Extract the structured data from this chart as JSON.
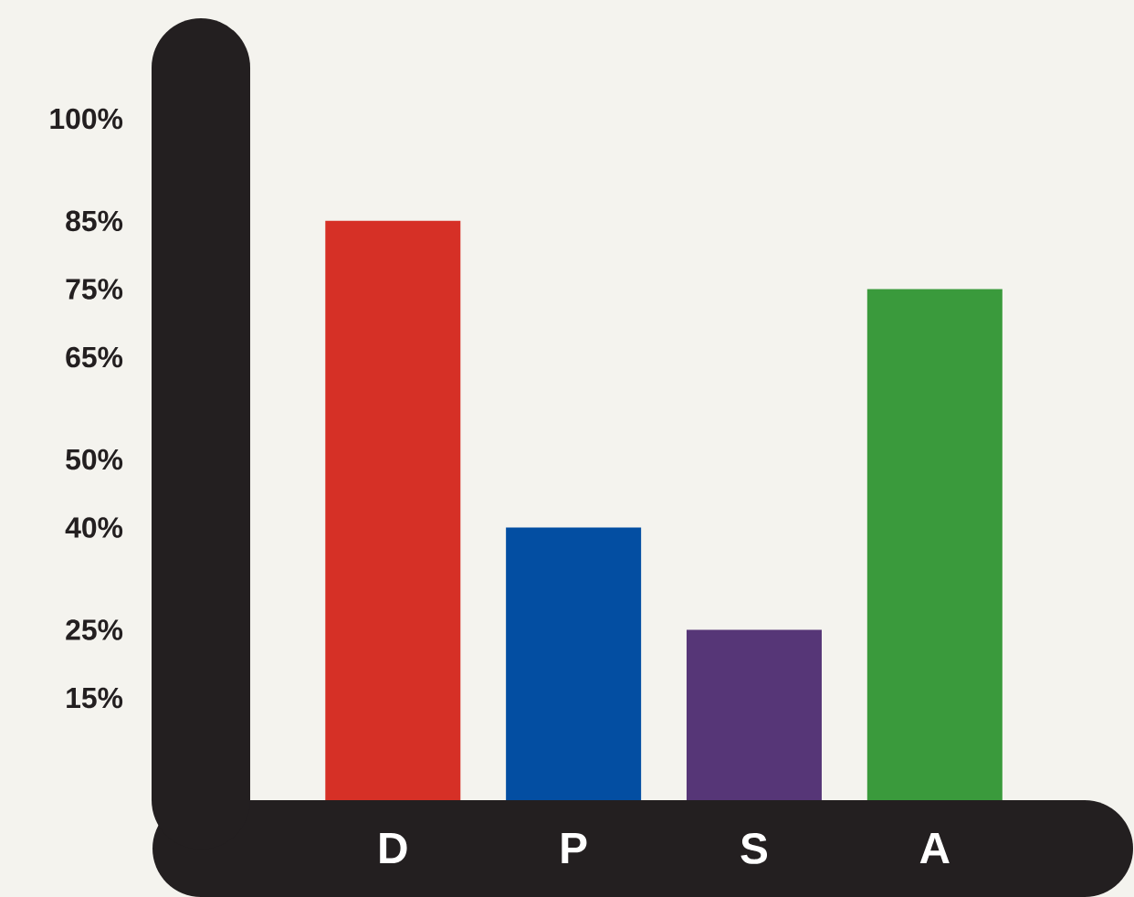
{
  "chart_data": {
    "type": "bar",
    "categories": [
      "D",
      "P",
      "S",
      "A"
    ],
    "values": [
      85,
      40,
      25,
      75
    ],
    "colors": [
      "#d63026",
      "#034ea2",
      "#563677",
      "#3a9a3c"
    ],
    "ylim": [
      0,
      100
    ],
    "yticks": [
      {
        "value": 15,
        "label": "15%"
      },
      {
        "value": 25,
        "label": "25%"
      },
      {
        "value": 40,
        "label": "40%"
      },
      {
        "value": 50,
        "label": "50%"
      },
      {
        "value": 65,
        "label": "65%"
      },
      {
        "value": 75,
        "label": "75%"
      },
      {
        "value": 85,
        "label": "85%"
      },
      {
        "value": 100,
        "label": "100%"
      }
    ],
    "grid": false
  }
}
